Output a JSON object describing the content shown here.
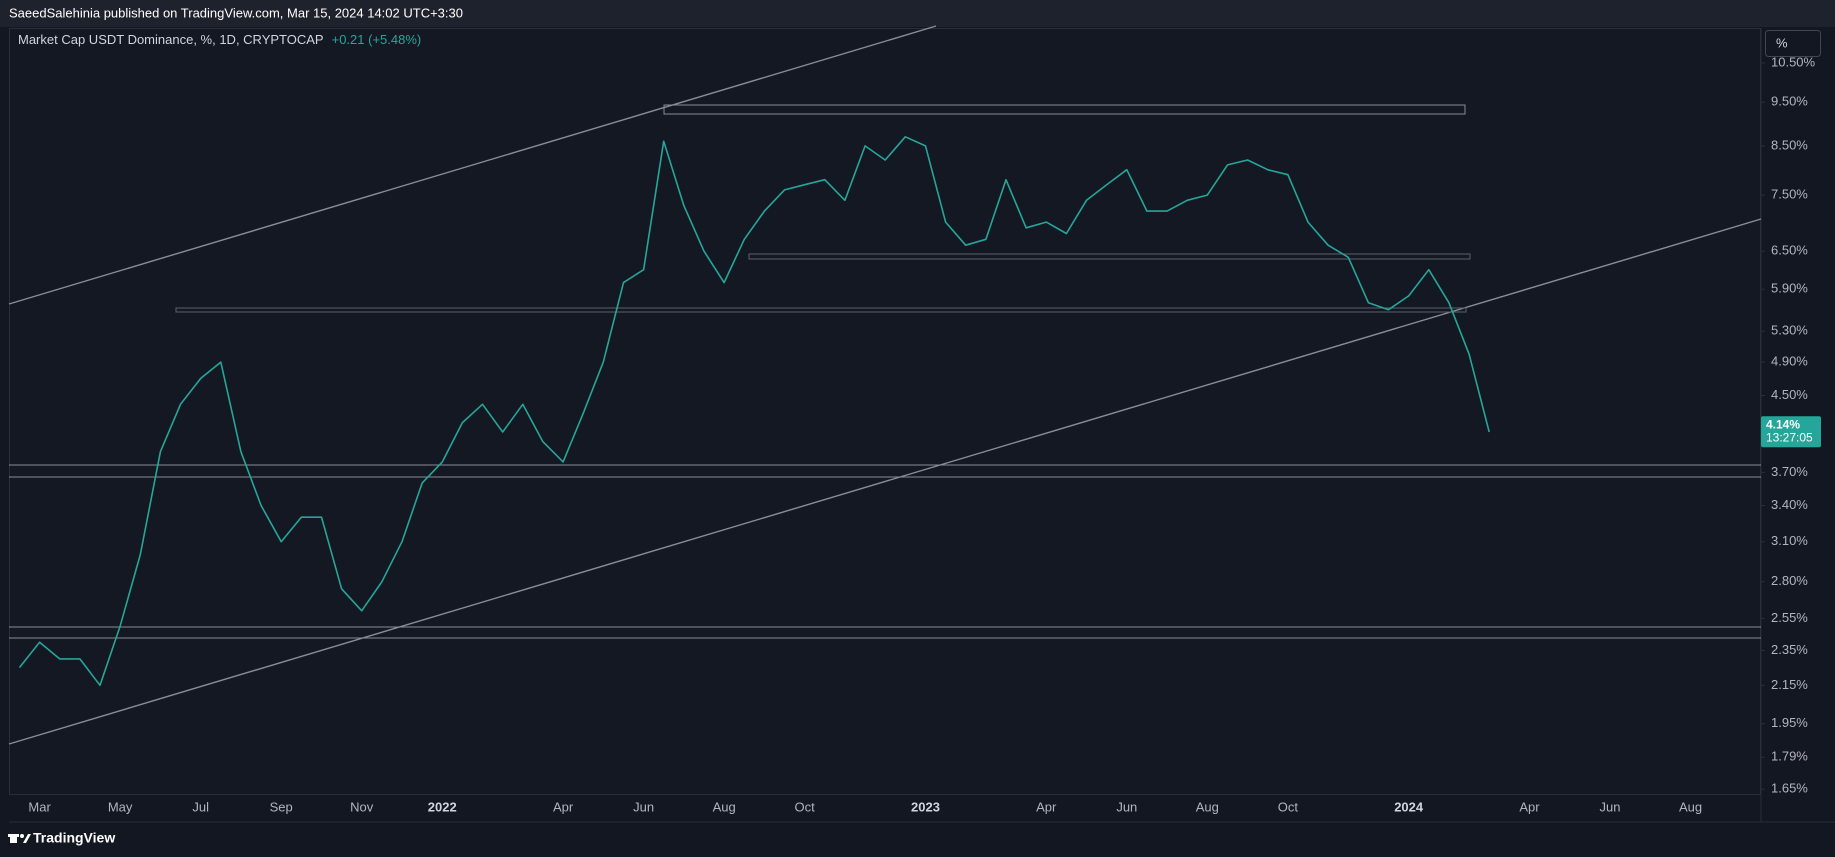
{
  "header": {
    "publisher": "SaeedSalehinia published on TradingView.com, Mar 15, 2024 14:02 UTC+3:30",
    "brand": "TradingView",
    "scale_button": "%"
  },
  "chart_data": {
    "type": "line",
    "title": "Market Cap USDT Dominance, %, 1D, CRYPTOCAP",
    "change": "+0.21 (+5.48%)",
    "color": "#26a69a",
    "log_scale": true,
    "grid": false,
    "categories": [
      null,
      "Mar",
      null,
      null,
      null,
      "May",
      null,
      null,
      null,
      "Jul",
      null,
      null,
      null,
      "Sep",
      null,
      null,
      null,
      "Nov",
      null,
      null,
      null,
      "2022",
      null,
      null,
      null,
      null,
      null,
      "Apr",
      null,
      null,
      null,
      "Jun",
      null,
      null,
      null,
      "Aug",
      null,
      null,
      null,
      "Oct",
      null,
      null,
      null,
      null,
      null,
      "2023",
      null,
      null,
      null,
      null,
      null,
      "Apr",
      null,
      null,
      null,
      "Jun",
      null,
      null,
      null,
      "Aug",
      null,
      null,
      null,
      "Oct",
      null,
      null,
      null,
      null,
      null,
      "2024",
      null,
      null,
      null,
      null,
      null,
      "Apr",
      null,
      null,
      null,
      "Jun",
      null,
      null,
      null,
      "Aug",
      null,
      null,
      null
    ],
    "values": [
      2.25,
      2.4,
      2.3,
      2.3,
      2.15,
      2.5,
      3.0,
      3.9,
      4.4,
      4.7,
      4.9,
      3.9,
      3.4,
      3.1,
      3.3,
      3.3,
      2.75,
      2.6,
      2.8,
      3.1,
      3.6,
      3.8,
      4.2,
      4.4,
      4.1,
      4.4,
      4.0,
      3.8,
      4.3,
      4.9,
      6.0,
      6.2,
      8.6,
      7.3,
      6.5,
      6.0,
      6.7,
      7.2,
      7.6,
      7.7,
      7.8,
      7.4,
      8.5,
      8.2,
      8.7,
      8.5,
      7.0,
      6.6,
      6.7,
      7.8,
      6.9,
      7.0,
      6.8,
      7.4,
      7.7,
      8.0,
      7.2,
      7.2,
      7.4,
      7.5,
      8.1,
      8.2,
      8.0,
      7.9,
      7.0,
      6.6,
      6.4,
      5.7,
      5.6,
      5.8,
      6.2,
      5.7,
      5.0,
      4.1,
      null,
      null,
      null,
      null,
      null,
      null,
      null,
      null,
      null,
      null,
      null,
      null,
      null
    ],
    "ylim": [
      1.63,
      11.48
    ],
    "yticks": [
      {
        "value": 10.5,
        "label": "10.50%"
      },
      {
        "value": 9.5,
        "label": "9.50%"
      },
      {
        "value": 8.5,
        "label": "8.50%"
      },
      {
        "value": 7.5,
        "label": "7.50%"
      },
      {
        "value": 6.5,
        "label": "6.50%"
      },
      {
        "value": 5.9,
        "label": "5.90%"
      },
      {
        "value": 5.3,
        "label": "5.30%"
      },
      {
        "value": 4.9,
        "label": "4.90%"
      },
      {
        "value": 4.5,
        "label": "4.50%"
      },
      {
        "value": 3.7,
        "label": "3.70%"
      },
      {
        "value": 3.4,
        "label": "3.40%"
      },
      {
        "value": 3.1,
        "label": "3.10%"
      },
      {
        "value": 2.8,
        "label": "2.80%"
      },
      {
        "value": 2.55,
        "label": "2.55%"
      },
      {
        "value": 2.35,
        "label": "2.35%"
      },
      {
        "value": 2.15,
        "label": "2.15%"
      },
      {
        "value": 1.95,
        "label": "1.95%"
      },
      {
        "value": 1.79,
        "label": "1.79%"
      },
      {
        "value": 1.65,
        "label": "1.65%"
      }
    ],
    "last_price": {
      "value": 4.14,
      "label": "4.14%"
    },
    "countdown": "13:27:05"
  }
}
